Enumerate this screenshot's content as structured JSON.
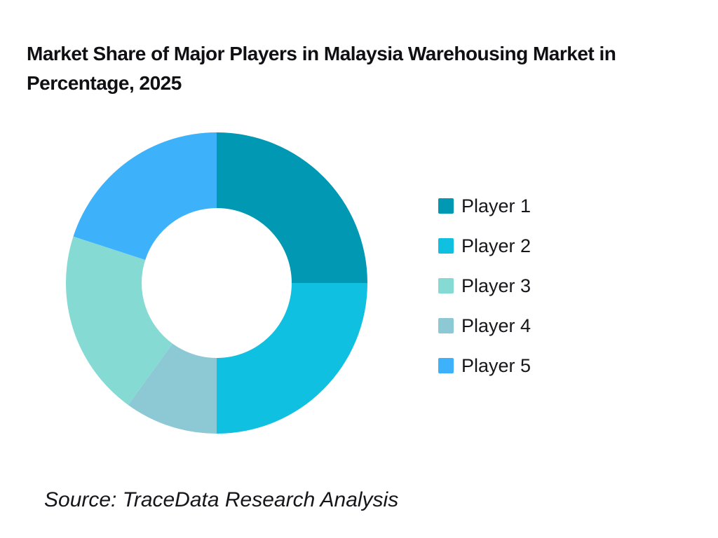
{
  "header": {
    "title_line1": "Market Share of Major Players in Malaysia Warehousing Market in",
    "title_line2": "Percentage, 2025"
  },
  "chart_data": {
    "type": "pie",
    "subtype": "donut",
    "title": "Market Share of Major Players in Malaysia Warehousing Market in Percentage, 2025",
    "unit": "percent",
    "legend_position": "right",
    "start_angle_deg": 0,
    "direction": "clockwise",
    "categories": [
      "Player 1",
      "Player 2",
      "Player 3",
      "Player 4",
      "Player 5"
    ],
    "values": [
      25,
      25,
      20,
      10,
      20
    ],
    "colors": [
      "#0098B2",
      "#10C0E0",
      "#86DAD4",
      "#8DC8D5",
      "#3EB1FB"
    ],
    "segments_clockwise_from_top": [
      {
        "label": "Player 1",
        "value": 25,
        "color": "#0098B2"
      },
      {
        "label": "Player 2",
        "value": 25,
        "color": "#10C0E0"
      },
      {
        "label": "Player 4",
        "value": 10,
        "color": "#8DC8D5"
      },
      {
        "label": "Player 3",
        "value": 20,
        "color": "#86DAD4"
      },
      {
        "label": "Player 5",
        "value": 20,
        "color": "#3EB1FB"
      }
    ],
    "legend": [
      {
        "label": "Player 1",
        "color": "#0098B2"
      },
      {
        "label": "Player 2",
        "color": "#10C0E0"
      },
      {
        "label": "Player 3",
        "color": "#86DAD4"
      },
      {
        "label": "Player 4",
        "color": "#8DC8D5"
      },
      {
        "label": "Player 5",
        "color": "#3EB1FB"
      }
    ]
  },
  "source": {
    "text": "Source: TraceData Research Analysis"
  }
}
